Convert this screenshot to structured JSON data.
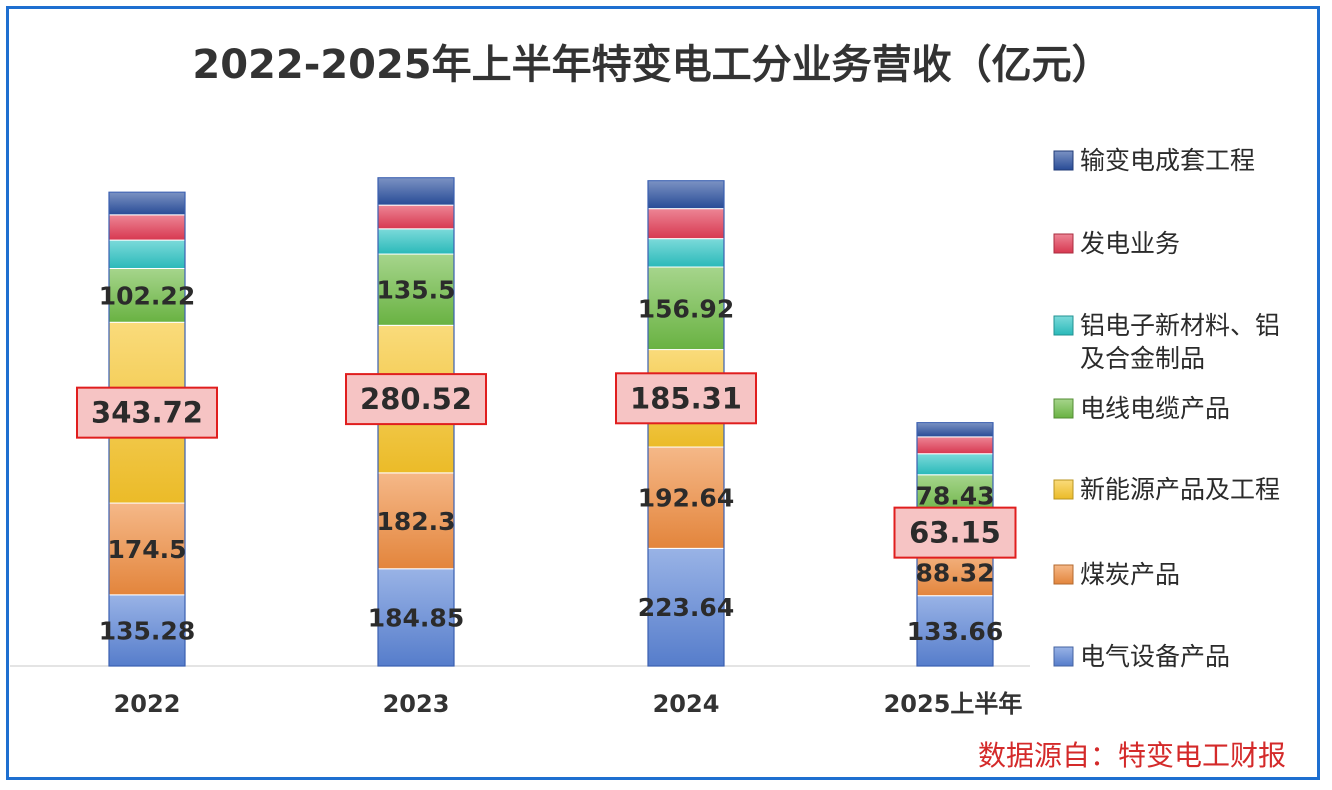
{
  "chart_data": {
    "type": "bar",
    "stacked": true,
    "title": "2022-2025年上半年特变电工分业务营收（亿元）",
    "xlabel": "",
    "ylabel": "",
    "categories": [
      "2022",
      "2023",
      "2024",
      "2025上半年"
    ],
    "series": [
      {
        "name": "电气设备产品",
        "color": "#5b84d6",
        "values": [
          135.28,
          184.85,
          223.64,
          133.66
        ]
      },
      {
        "name": "煤炭产品",
        "color": "#ef8c3f",
        "values": [
          174.5,
          182.3,
          192.64,
          88.32
        ]
      },
      {
        "name": "新能源产品及工程",
        "color": "#f7c52a",
        "values": [
          343.72,
          280.52,
          185.31,
          63.15
        ]
      },
      {
        "name": "电线电缆产品",
        "color": "#6fbb45",
        "values": [
          102.22,
          135.5,
          156.92,
          78.43
        ]
      },
      {
        "name": "铝电子新材料、铝及合金制品",
        "color": "#2cc3c3",
        "values": [
          54,
          48,
          54,
          40
        ]
      },
      {
        "name": "发电业务",
        "color": "#e23b54",
        "values": [
          48,
          45,
          57,
          32
        ]
      },
      {
        "name": "输变电成套工程",
        "color": "#2a4f9e",
        "values": [
          43,
          52,
          53,
          27
        ]
      }
    ],
    "labeled_series": [
      "电气设备产品",
      "煤炭产品",
      "新能源产品及工程",
      "电线电缆产品"
    ],
    "highlighted_series": "新能源产品及工程",
    "ylim": [
      0,
      1000
    ],
    "grid": false,
    "legend_position": "right",
    "legend_order": [
      "输变电成套工程",
      "发电业务",
      "铝电子新材料、铝及合金制品",
      "电线电缆产品",
      "新能源产品及工程",
      "煤炭产品",
      "电气设备产品"
    ],
    "legend_lines": [
      [
        "输变电成套工程"
      ],
      [
        "发电业务"
      ],
      [
        "铝电子新材料、铝",
        "及合金制品"
      ],
      [
        "电线电缆产品"
      ],
      [
        "新能源产品及工程"
      ],
      [
        "煤炭产品"
      ],
      [
        "电气设备产品"
      ]
    ]
  },
  "source_note": "数据源自：特变电工财报"
}
